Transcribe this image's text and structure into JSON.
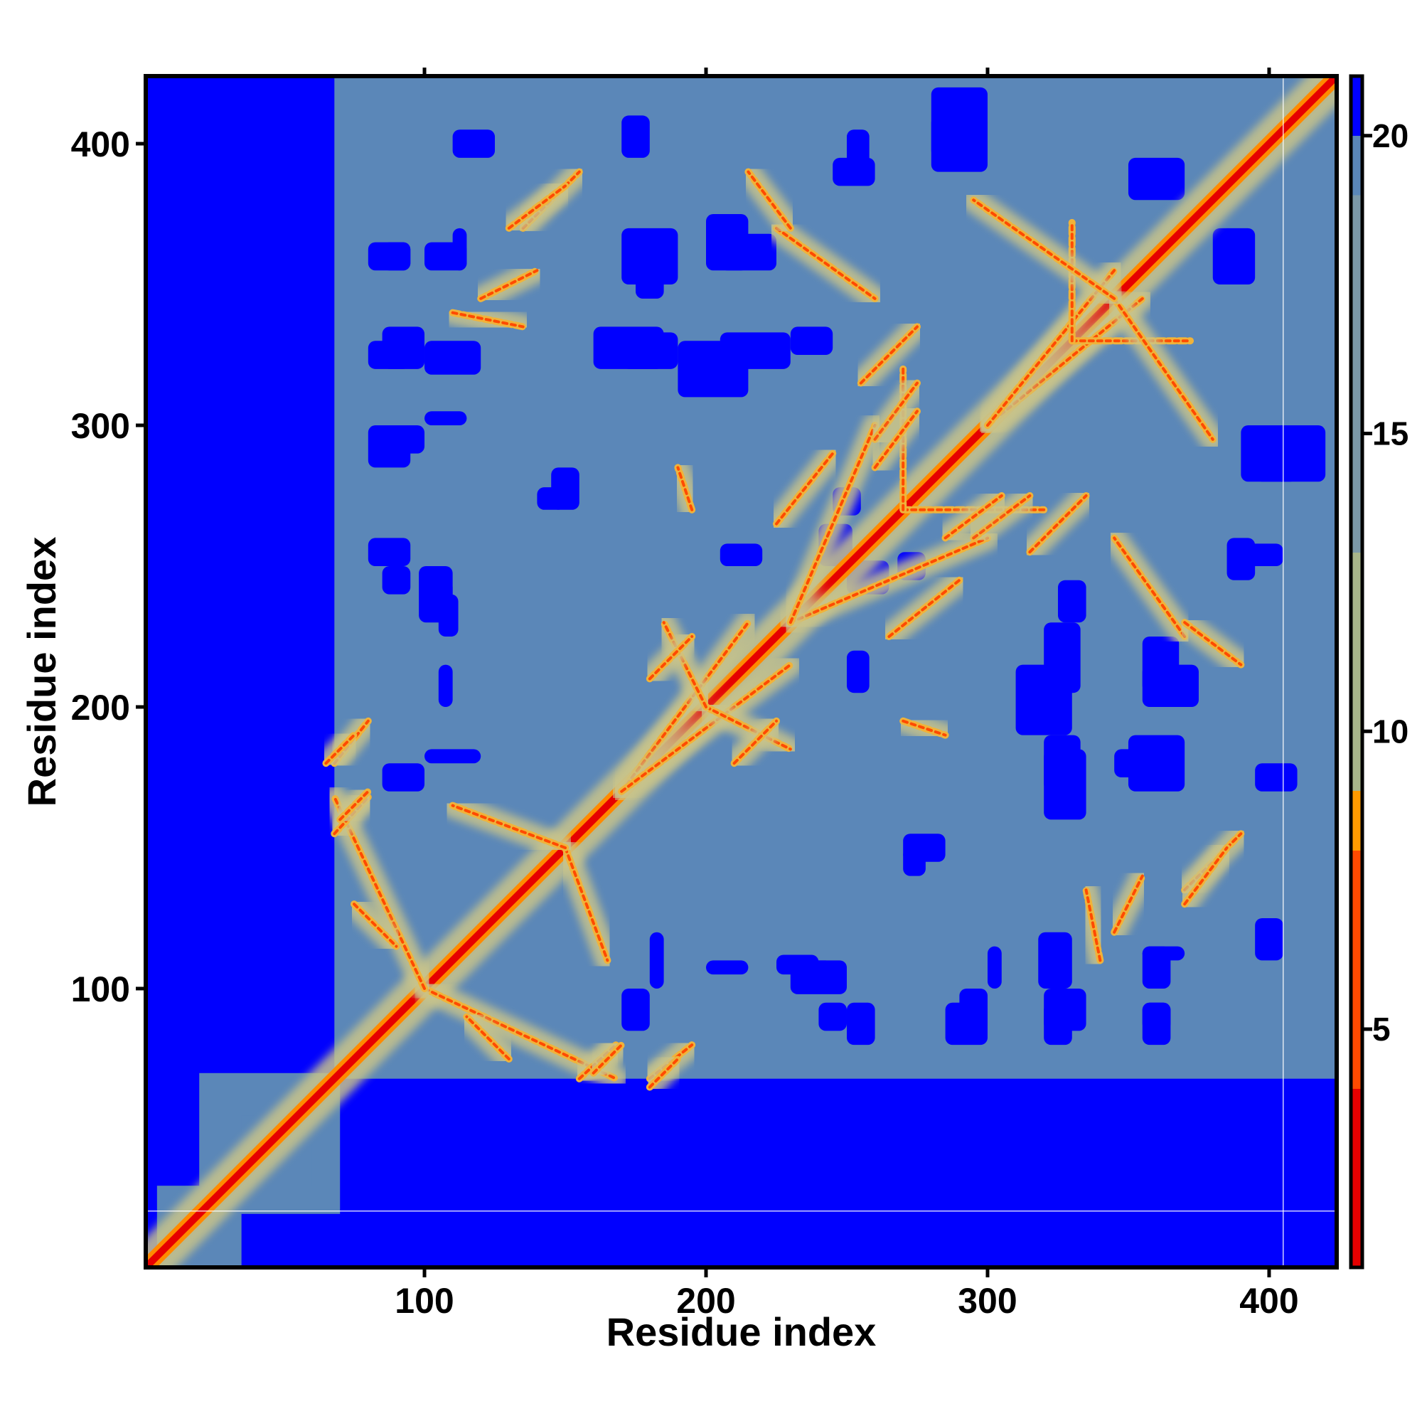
{
  "chart_data": {
    "type": "heatmap",
    "title": "",
    "xlabel": "Residue index",
    "ylabel": "Residue index",
    "n_residues": 424,
    "x_range": [
      1,
      424
    ],
    "y_range": [
      1,
      424
    ],
    "x_ticks": [
      100,
      200,
      300,
      400
    ],
    "y_ticks": [
      100,
      200,
      300,
      400
    ],
    "colorbar": {
      "ticks": [
        5,
        10,
        15,
        20
      ],
      "range": [
        1,
        21
      ],
      "stops": [
        {
          "value": 1,
          "color": "#e60000"
        },
        {
          "value": 4,
          "color": "#ff4a00"
        },
        {
          "value": 8,
          "color": "#ff9a00"
        },
        {
          "value": 9,
          "color": "#a8b58a"
        },
        {
          "value": 13,
          "color": "#7b98a8"
        },
        {
          "value": 19,
          "color": "#5a86b8"
        },
        {
          "value": 20,
          "color": "#0000ff"
        },
        {
          "value": 21,
          "color": "#0000ff"
        }
      ]
    },
    "background_color": "#0000ff",
    "folded_color": "#5b87b8",
    "folded_region": {
      "x": [
        68,
        424
      ],
      "y": [
        68,
        424
      ],
      "note_extra_blocks": [
        [
          1,
          60,
          1,
          60
        ]
      ]
    },
    "contact_lines": [
      {
        "x0": 1,
        "y0": 1,
        "x1": 424,
        "y1": 424,
        "value": 1
      },
      {
        "x0": 100,
        "y0": 100,
        "x1": 168,
        "y1": 68,
        "value": 6
      },
      {
        "x0": 150,
        "y0": 150,
        "x1": 165,
        "y1": 110,
        "value": 7
      },
      {
        "x0": 170,
        "y0": 170,
        "x1": 215,
        "y1": 230,
        "value": 7
      },
      {
        "x0": 200,
        "y0": 200,
        "x1": 230,
        "y1": 185,
        "value": 6
      },
      {
        "x0": 230,
        "y0": 230,
        "x1": 300,
        "y1": 260,
        "value": 7
      },
      {
        "x0": 270,
        "y0": 270,
        "x1": 320,
        "y1": 270,
        "value": 6
      },
      {
        "x0": 300,
        "y0": 300,
        "x1": 355,
        "y1": 345,
        "value": 7
      },
      {
        "x0": 330,
        "y0": 330,
        "x1": 372,
        "y1": 330,
        "value": 6
      },
      {
        "x0": 345,
        "y0": 345,
        "x1": 380,
        "y1": 295,
        "value": 7
      },
      {
        "x0": 68,
        "y0": 180,
        "x1": 80,
        "y1": 195,
        "value": 6
      },
      {
        "x0": 68,
        "y0": 155,
        "x1": 80,
        "y1": 168,
        "value": 6
      },
      {
        "x0": 135,
        "y0": 370,
        "x1": 155,
        "y1": 390,
        "value": 7
      },
      {
        "x0": 225,
        "y0": 370,
        "x1": 260,
        "y1": 345,
        "value": 7
      },
      {
        "x0": 260,
        "y0": 295,
        "x1": 275,
        "y1": 315,
        "value": 7
      },
      {
        "x0": 285,
        "y0": 260,
        "x1": 305,
        "y1": 275,
        "value": 7
      },
      {
        "x0": 265,
        "y0": 225,
        "x1": 290,
        "y1": 245,
        "value": 7
      },
      {
        "x0": 315,
        "y0": 255,
        "x1": 335,
        "y1": 275,
        "value": 7
      },
      {
        "x0": 345,
        "y0": 120,
        "x1": 355,
        "y1": 140,
        "value": 7
      },
      {
        "x0": 370,
        "y0": 130,
        "x1": 385,
        "y1": 150,
        "value": 7
      },
      {
        "x0": 370,
        "y0": 230,
        "x1": 390,
        "y1": 215,
        "value": 7
      },
      {
        "x0": 160,
        "y0": 70,
        "x1": 170,
        "y1": 80,
        "value": 6
      },
      {
        "x0": 180,
        "y0": 65,
        "x1": 190,
        "y1": 75,
        "value": 6
      },
      {
        "x0": 210,
        "y0": 180,
        "x1": 225,
        "y1": 195,
        "value": 6
      },
      {
        "x0": 270,
        "y0": 195,
        "x1": 285,
        "y1": 190,
        "value": 7
      },
      {
        "x0": 110,
        "y0": 340,
        "x1": 135,
        "y1": 335,
        "value": 7
      },
      {
        "x0": 75,
        "y0": 130,
        "x1": 90,
        "y1": 115,
        "value": 7
      }
    ],
    "void_blocks": [
      [
        80,
        95,
        355,
        365
      ],
      [
        100,
        115,
        355,
        365
      ],
      [
        80,
        95,
        320,
        330
      ],
      [
        100,
        120,
        318,
        330
      ],
      [
        80,
        95,
        285,
        300
      ],
      [
        80,
        95,
        250,
        260
      ],
      [
        100,
        110,
        235,
        245
      ],
      [
        140,
        150,
        270,
        278
      ],
      [
        170,
        190,
        350,
        370
      ],
      [
        205,
        225,
        355,
        368
      ],
      [
        170,
        190,
        320,
        333
      ],
      [
        205,
        230,
        320,
        333
      ],
      [
        245,
        260,
        385,
        395
      ],
      [
        280,
        300,
        395,
        410
      ],
      [
        325,
        335,
        230,
        245
      ],
      [
        310,
        330,
        190,
        215
      ],
      [
        355,
        375,
        200,
        215
      ],
      [
        380,
        395,
        350,
        370
      ],
      [
        390,
        420,
        280,
        300
      ],
      [
        390,
        405,
        250,
        258
      ],
      [
        250,
        265,
        240,
        252
      ],
      [
        245,
        255,
        268,
        278
      ],
      [
        170,
        180,
        85,
        100
      ],
      [
        205,
        220,
        250,
        258
      ],
      [
        100,
        120,
        180,
        185
      ],
      [
        320,
        335,
        160,
        185
      ],
      [
        345,
        360,
        175,
        185
      ],
      [
        270,
        285,
        145,
        155
      ],
      [
        230,
        250,
        98,
        110
      ],
      [
        290,
        300,
        85,
        100
      ],
      [
        320,
        335,
        85,
        100
      ],
      [
        355,
        365,
        85,
        95
      ],
      [
        300,
        305,
        100,
        115
      ],
      [
        240,
        250,
        85,
        95
      ],
      [
        200,
        215,
        105,
        110
      ],
      [
        225,
        240,
        105,
        112
      ],
      [
        355,
        370,
        110,
        115
      ],
      [
        395,
        410,
        170,
        180
      ],
      [
        395,
        405,
        110,
        125
      ]
    ],
    "guide_lines": {
      "vertical_x": 405,
      "horizontal_y": 21
    }
  }
}
